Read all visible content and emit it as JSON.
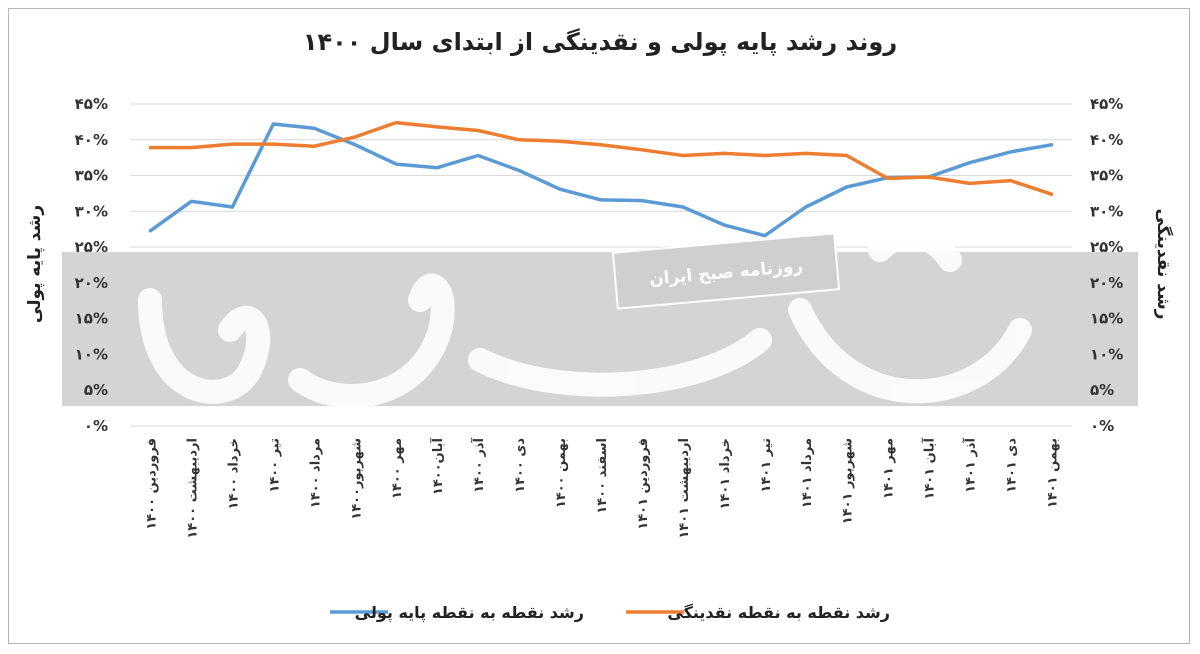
{
  "watermark": {
    "text": "روزنامه صبح ایران"
  },
  "chart_data": {
    "type": "line",
    "title": "روند رشد پایه پولی و نقدینگی از ابتدای سال ۱۴۰۰",
    "ylabel_left": "رشد پایه پولی",
    "ylabel_right": "رشد نقدینگی",
    "ylim": [
      0,
      45
    ],
    "yticks": [
      0,
      5,
      10,
      15,
      20,
      25,
      30,
      35,
      40,
      45
    ],
    "ytick_labels": [
      "۰%",
      "۵%",
      "۱۰%",
      "۱۵%",
      "۲۰%",
      "۲۵%",
      "۳۰%",
      "۳۵%",
      "۴۰%",
      "۴۵%"
    ],
    "categories": [
      "فروردین ۱۴۰۰",
      "اردیبهشت ۱۴۰۰",
      "خرداد ۱۴۰۰",
      "تیر ۱۴۰۰",
      "مرداد ۱۴۰۰",
      "شهریور۱۴۰۰",
      "مهر ۱۴۰۰",
      "آبان۱۴۰۰",
      "آذر ۱۴۰۰",
      "دی ۱۴۰۰",
      "بهمن ۱۴۰۰",
      "اسفند ۱۴۰۰",
      "فروردین ۱۴۰۱",
      "اردیبهشت ۱۴۰۱",
      "خرداد ۱۴۰۱",
      "تیر ۱۴۰۱",
      "مرداد ۱۴۰۱",
      "شهریور ۱۴۰۱",
      "مهر ۱۴۰۱",
      "آبان ۱۴۰۱",
      "آذر ۱۴۰۱",
      "دی ۱۴۰۱",
      "بهمن ۱۴۰۱"
    ],
    "series": [
      {
        "name": "رشد نقطه به نقطه پایه پولی",
        "color": "#5b9bd5",
        "values": [
          27.3,
          31.4,
          30.6,
          42.2,
          41.6,
          39.3,
          36.6,
          36.1,
          37.8,
          35.7,
          33.1,
          31.6,
          31.5,
          30.6,
          28.1,
          26.6,
          30.6,
          33.4,
          34.7,
          34.8,
          36.8,
          38.3,
          39.3
        ]
      },
      {
        "name": "رشد نقطه به نقطه نقدینگی",
        "color": "#ed7d31",
        "values": [
          38.9,
          38.9,
          39.4,
          39.4,
          39.1,
          40.4,
          42.4,
          41.8,
          41.3,
          40.0,
          39.8,
          39.3,
          38.6,
          37.8,
          38.1,
          37.8,
          38.1,
          37.8,
          34.6,
          34.8,
          33.9,
          34.3,
          32.4
        ]
      }
    ],
    "grid": true,
    "legend": "bottom"
  }
}
